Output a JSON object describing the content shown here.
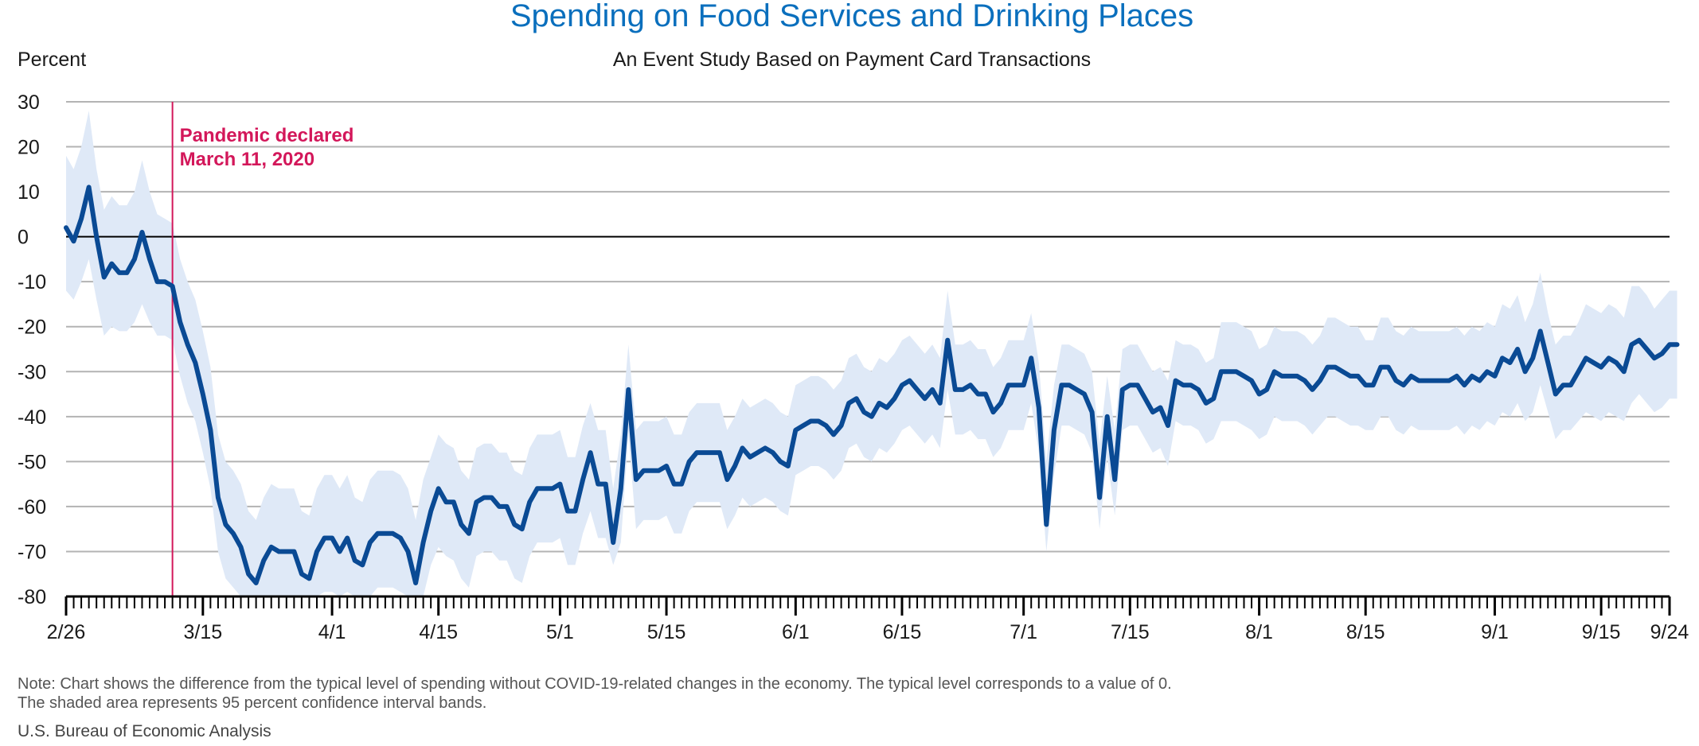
{
  "chart_data": {
    "type": "line",
    "title": "Spending on Food Services and Drinking Places",
    "subtitle": "An Event Study Based on Payment Card Transactions",
    "ylabel": "Percent",
    "ylim": [
      -80,
      30
    ],
    "yticks": [
      30,
      20,
      10,
      0,
      -10,
      -20,
      -30,
      -40,
      -50,
      -60,
      -70,
      -80
    ],
    "x_range": [
      "2020-02-26",
      "2020-09-24"
    ],
    "x_tick_labels": [
      {
        "date": "2020-02-26",
        "label": "2/26"
      },
      {
        "date": "2020-03-15",
        "label": "3/15"
      },
      {
        "date": "2020-04-01",
        "label": "4/1"
      },
      {
        "date": "2020-04-15",
        "label": "4/15"
      },
      {
        "date": "2020-05-01",
        "label": "5/1"
      },
      {
        "date": "2020-05-15",
        "label": "5/15"
      },
      {
        "date": "2020-06-01",
        "label": "6/1"
      },
      {
        "date": "2020-06-15",
        "label": "6/15"
      },
      {
        "date": "2020-07-01",
        "label": "7/1"
      },
      {
        "date": "2020-07-15",
        "label": "7/15"
      },
      {
        "date": "2020-08-01",
        "label": "8/1"
      },
      {
        "date": "2020-08-15",
        "label": "8/15"
      },
      {
        "date": "2020-09-01",
        "label": "9/1"
      },
      {
        "date": "2020-09-15",
        "label": "9/15"
      },
      {
        "date": "2020-09-24",
        "label": "9/24"
      }
    ],
    "grid": true,
    "annotation": {
      "date": "2020-03-11",
      "label_line1": "Pandemic declared",
      "label_line2": "March 11, 2020"
    },
    "series_values": [
      2,
      -1,
      4,
      11,
      0,
      -9,
      -6,
      -8,
      -8,
      -5,
      1,
      -5,
      -10,
      -10,
      -11,
      -19,
      -24,
      -28,
      -35,
      -43,
      -58,
      -64,
      -66,
      -69,
      -75,
      -77,
      -72,
      -69,
      -70,
      -70,
      -70,
      -75,
      -76,
      -70,
      -67,
      -67,
      -70,
      -67,
      -72,
      -73,
      -68,
      -66,
      -66,
      -66,
      -67,
      -70,
      -77,
      -68,
      -61,
      -56,
      -59,
      -59,
      -64,
      -66,
      -59,
      -58,
      -58,
      -60,
      -60,
      -64,
      -65,
      -59,
      -56,
      -56,
      -56,
      -55,
      -61,
      -61,
      -54,
      -48,
      -55,
      -55,
      -68,
      -56,
      -34,
      -54,
      -52,
      -52,
      -52,
      -51,
      -55,
      -55,
      -50,
      -48,
      -48,
      -48,
      -48,
      -54,
      -51,
      -47,
      -49,
      -48,
      -47,
      -48,
      -50,
      -51,
      -43,
      -42,
      -41,
      -41,
      -42,
      -44,
      -42,
      -37,
      -36,
      -39,
      -40,
      -37,
      -38,
      -36,
      -33,
      -32,
      -34,
      -36,
      -34,
      -37,
      -23,
      -34,
      -34,
      -33,
      -35,
      -35,
      -39,
      -37,
      -33,
      -33,
      -33,
      -27,
      -38,
      -64,
      -43,
      -33,
      -33,
      -34,
      -35,
      -39,
      -58,
      -40,
      -54,
      -34,
      -33,
      -33,
      -36,
      -39,
      -38,
      -42,
      -32,
      -33,
      -33,
      -34,
      -37,
      -36,
      -30,
      -30,
      -30,
      -31,
      -32,
      -35,
      -34,
      -30,
      -31,
      -31,
      -31,
      -32,
      -34,
      -32,
      -29,
      -29,
      -30,
      -31,
      -31,
      -33,
      -33,
      -29,
      -29,
      -32,
      -33,
      -31,
      -32,
      -32,
      -32,
      -32,
      -32,
      -31,
      -33,
      -31,
      -32,
      -30,
      -31,
      -27,
      -28,
      -25,
      -30,
      -27,
      -21,
      -28,
      -35,
      -33,
      -33,
      -30,
      -27,
      -28,
      -29,
      -27,
      -28,
      -30,
      -24,
      -23,
      -25,
      -27,
      -26,
      -24,
      -24
    ],
    "ci_upper": [
      18,
      15,
      20,
      28,
      15,
      6,
      9,
      7,
      7,
      10,
      17,
      10,
      5,
      4,
      3,
      -5,
      -10,
      -14,
      -21,
      -29,
      -44,
      -50,
      -52,
      -55,
      -61,
      -63,
      -58,
      -55,
      -56,
      -56,
      -56,
      -61,
      -62,
      -56,
      -53,
      -53,
      -56,
      -53,
      -58,
      -59,
      -54,
      -52,
      -52,
      -52,
      -53,
      -56,
      -63,
      -54,
      -49,
      -44,
      -46,
      -47,
      -52,
      -54,
      -47,
      -46,
      -46,
      -48,
      -48,
      -52,
      -53,
      -47,
      -44,
      -44,
      -44,
      -43,
      -49,
      -49,
      -42,
      -37,
      -43,
      -43,
      -56,
      -44,
      -24,
      -43,
      -41,
      -41,
      -41,
      -40,
      -44,
      -44,
      -39,
      -37,
      -37,
      -37,
      -37,
      -43,
      -40,
      -36,
      -38,
      -37,
      -36,
      -37,
      -39,
      -40,
      -33,
      -32,
      -31,
      -31,
      -32,
      -34,
      -32,
      -27,
      -26,
      -29,
      -30,
      -27,
      -28,
      -26,
      -23,
      -22,
      -24,
      -26,
      -24,
      -27,
      -12,
      -24,
      -24,
      -23,
      -25,
      -25,
      -29,
      -27,
      -23,
      -23,
      -23,
      -17,
      -28,
      -50,
      -33,
      -24,
      -24,
      -25,
      -26,
      -30,
      -46,
      -31,
      -43,
      -25,
      -24,
      -24,
      -27,
      -30,
      -29,
      -32,
      -23,
      -24,
      -24,
      -25,
      -28,
      -27,
      -19,
      -19,
      -19,
      -20,
      -21,
      -25,
      -24,
      -20,
      -21,
      -21,
      -21,
      -22,
      -24,
      -22,
      -18,
      -18,
      -19,
      -20,
      -20,
      -23,
      -23,
      -18,
      -18,
      -21,
      -22,
      -20,
      -21,
      -21,
      -21,
      -21,
      -21,
      -20,
      -22,
      -20,
      -21,
      -19,
      -20,
      -15,
      -16,
      -13,
      -19,
      -15,
      -8,
      -17,
      -24,
      -22,
      -22,
      -19,
      -15,
      -16,
      -17,
      -15,
      -16,
      -18,
      -11,
      -11,
      -13,
      -16,
      -14,
      -12,
      -12
    ],
    "ci_lower": [
      -12,
      -14,
      -10,
      -5,
      -14,
      -22,
      -20,
      -21,
      -21,
      -19,
      -15,
      -19,
      -22,
      -22,
      -23,
      -31,
      -37,
      -41,
      -48,
      -56,
      -70,
      -76,
      -78,
      -80,
      -80,
      -80,
      -80,
      -80,
      -80,
      -80,
      -80,
      -80,
      -80,
      -80,
      -79,
      -79,
      -80,
      -79,
      -80,
      -80,
      -80,
      -78,
      -78,
      -78,
      -79,
      -80,
      -80,
      -80,
      -73,
      -69,
      -71,
      -72,
      -76,
      -78,
      -71,
      -70,
      -70,
      -72,
      -72,
      -76,
      -77,
      -71,
      -68,
      -68,
      -68,
      -67,
      -73,
      -73,
      -66,
      -61,
      -67,
      -67,
      -73,
      -68,
      -44,
      -65,
      -63,
      -63,
      -63,
      -62,
      -66,
      -66,
      -61,
      -59,
      -59,
      -59,
      -59,
      -65,
      -62,
      -58,
      -60,
      -59,
      -58,
      -59,
      -61,
      -62,
      -53,
      -52,
      -51,
      -51,
      -52,
      -54,
      -52,
      -47,
      -46,
      -49,
      -50,
      -47,
      -48,
      -46,
      -43,
      -42,
      -44,
      -46,
      -44,
      -47,
      -34,
      -44,
      -44,
      -43,
      -45,
      -45,
      -49,
      -47,
      -43,
      -43,
      -43,
      -37,
      -48,
      -70,
      -53,
      -42,
      -42,
      -43,
      -44,
      -48,
      -65,
      -49,
      -62,
      -43,
      -42,
      -42,
      -45,
      -48,
      -47,
      -51,
      -41,
      -42,
      -42,
      -43,
      -46,
      -45,
      -41,
      -41,
      -41,
      -42,
      -43,
      -45,
      -44,
      -40,
      -41,
      -41,
      -41,
      -42,
      -44,
      -42,
      -40,
      -40,
      -41,
      -42,
      -42,
      -43,
      -43,
      -40,
      -40,
      -43,
      -44,
      -42,
      -43,
      -43,
      -43,
      -43,
      -43,
      -42,
      -44,
      -42,
      -43,
      -41,
      -42,
      -39,
      -40,
      -37,
      -41,
      -39,
      -33,
      -39,
      -45,
      -43,
      -43,
      -41,
      -39,
      -40,
      -41,
      -39,
      -40,
      -41,
      -37,
      -35,
      -37,
      -39,
      -38,
      -36,
      -36
    ]
  },
  "footer": {
    "note_line1": "Note: Chart shows the difference from the typical level of spending without COVID-19-related changes in the economy. The typical level corresponds to a value of 0.",
    "note_line2": "The shaded area represents 95 percent confidence interval bands.",
    "source": "U.S. Bureau of Economic Analysis"
  },
  "colors": {
    "title": "#0a6fbd",
    "line": "#0a4a94",
    "band": "#dfe9f7",
    "annotation": "#d3175a",
    "grid": "#b3b3b3",
    "zero_line": "#000000"
  }
}
